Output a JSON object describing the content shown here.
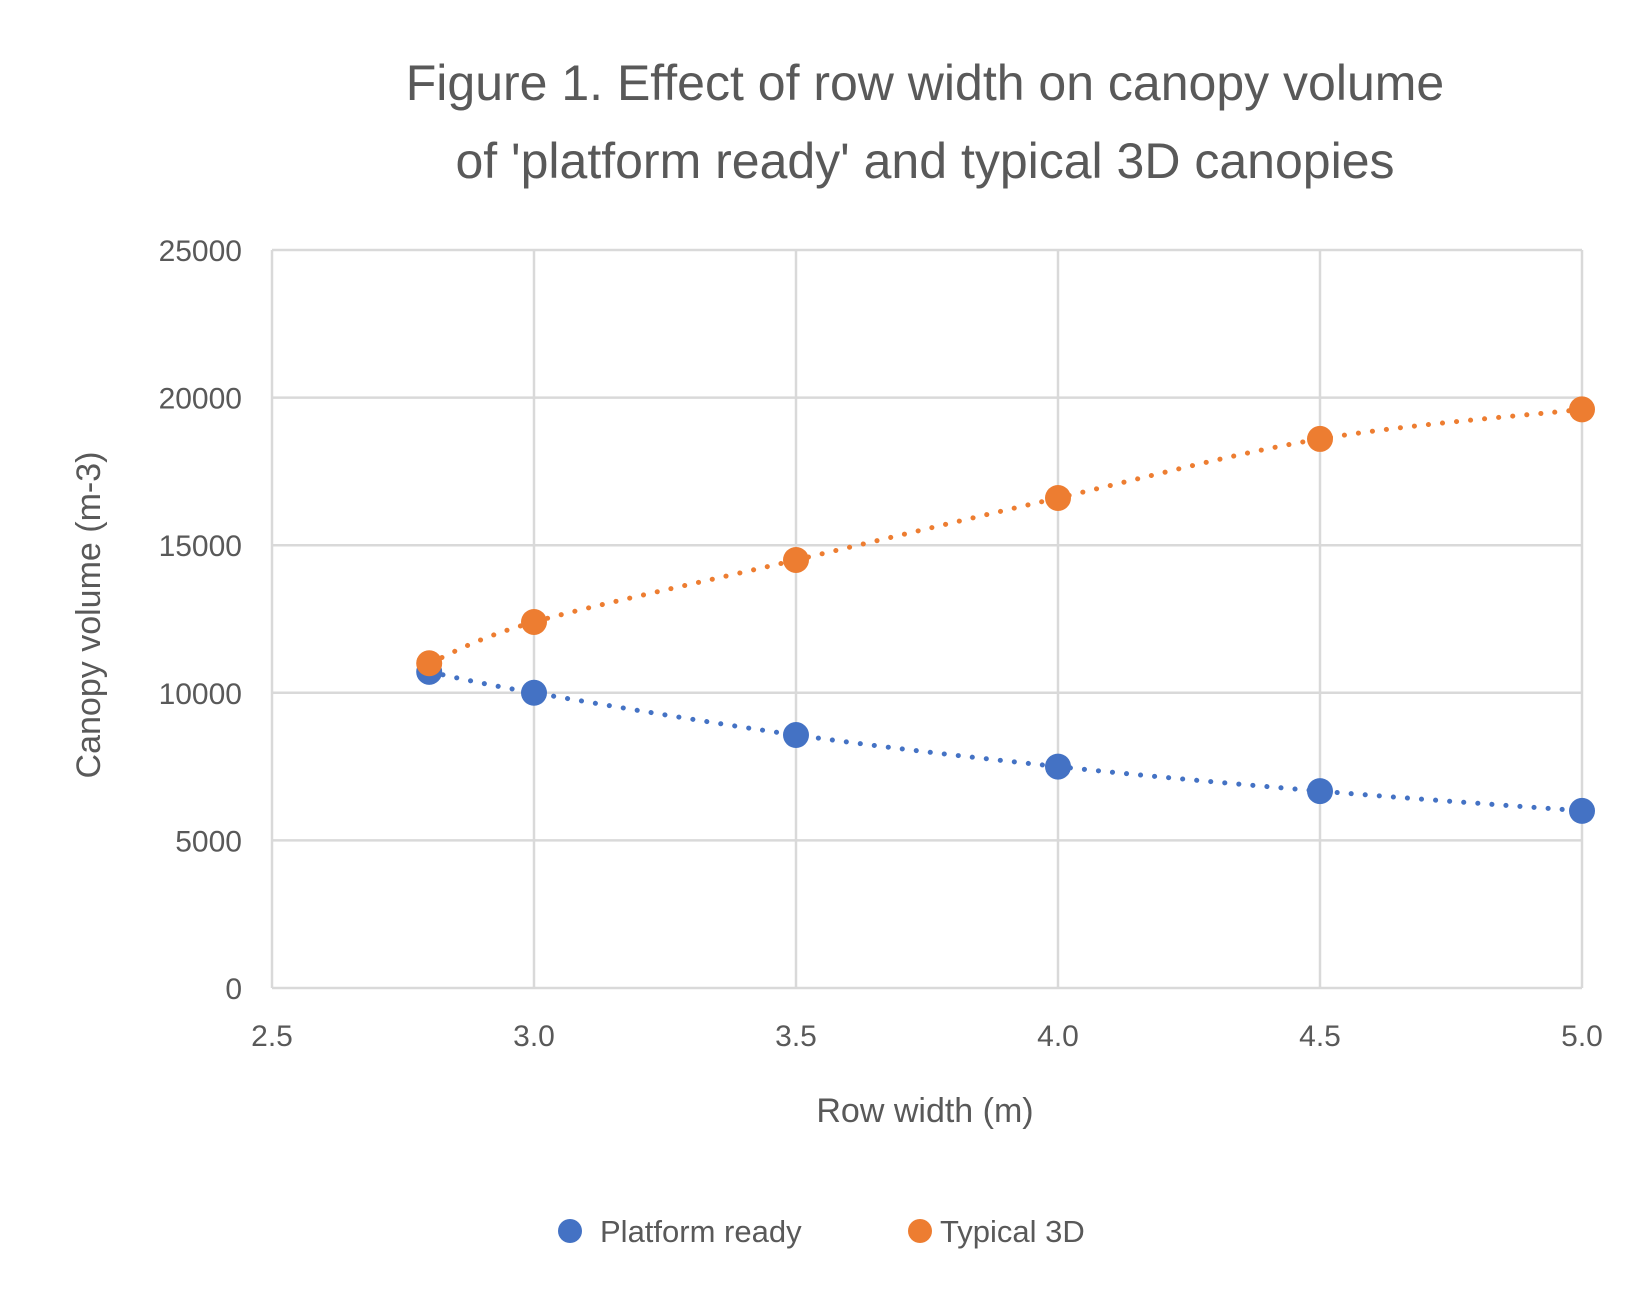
{
  "chart_data": {
    "type": "scatter",
    "title": "Figure 1. Effect of row width on canopy volume of 'platform ready' and typical 3D canopies",
    "title_lines": [
      "Figure 1. Effect of row width on canopy volume",
      "of 'platform ready' and typical 3D canopies"
    ],
    "xlabel": "Row width (m)",
    "ylabel": "Canopy volume (m-3)",
    "xlim": [
      2.5,
      5.0
    ],
    "ylim": [
      0,
      25000
    ],
    "xticks": [
      "2.5",
      "3.0",
      "3.5",
      "4.0",
      "4.5",
      "5.0"
    ],
    "xtick_values": [
      2.5,
      3.0,
      3.5,
      4.0,
      4.5,
      5.0
    ],
    "yticks": [
      "0",
      "5000",
      "10000",
      "15000",
      "20000",
      "25000"
    ],
    "ytick_values": [
      0,
      5000,
      10000,
      15000,
      20000,
      25000
    ],
    "grid": true,
    "legend_position": "bottom",
    "series": [
      {
        "name": "Platform ready",
        "color": "#4472C4",
        "x": [
          2.8,
          3.0,
          3.5,
          4.0,
          4.5,
          5.0
        ],
        "y": [
          10710,
          10000,
          8570,
          7500,
          6670,
          6000
        ],
        "trendline": "dotted"
      },
      {
        "name": "Typical 3D",
        "color": "#ED7D31",
        "x": [
          2.8,
          3.0,
          3.5,
          4.0,
          4.5,
          5.0
        ],
        "y": [
          11000,
          12400,
          14500,
          16600,
          18600,
          19600
        ],
        "trendline": "dotted"
      }
    ]
  }
}
